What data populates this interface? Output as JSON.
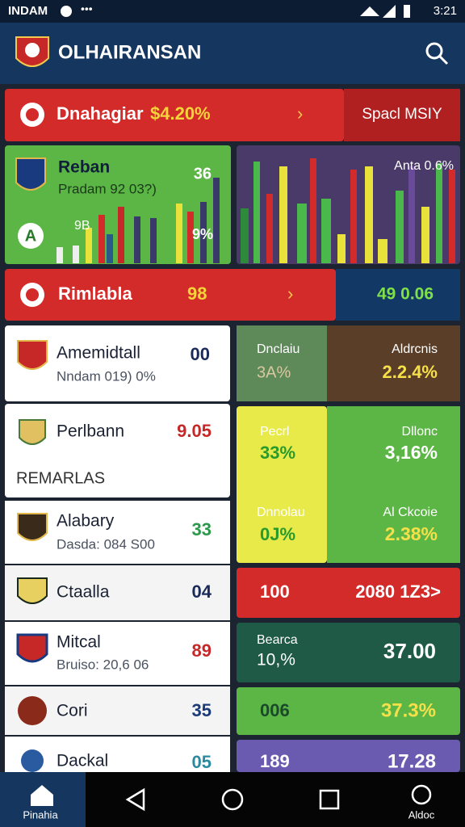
{
  "status_bar": {
    "carrier": "INDAM",
    "time": "3:21"
  },
  "header": {
    "title": "OLHAIRANSAN"
  },
  "banner_1": {
    "name": "Dnahagiar",
    "value": "$4.20%",
    "side": "Spacl MSIY"
  },
  "tile_left": {
    "name": "Reban",
    "sub": "Pradam 92 03?)",
    "top_value": "36",
    "mid_value": "9B",
    "low_value": "9%"
  },
  "tile_right": {
    "label": "Anta 0.6%"
  },
  "banner_2": {
    "name": "Rimlabla",
    "value": "98",
    "side": "49 0.06"
  },
  "list": {
    "items": [
      {
        "name": "Amemidtall",
        "sub": "Nndam 019) 0%",
        "value": "00"
      },
      {
        "name": "Perlbann",
        "value": "9.05"
      },
      {
        "name": "Alabary",
        "sub": "Dasda: 084 S00",
        "value": "33"
      },
      {
        "name": "Ctaalla",
        "value": "04"
      },
      {
        "name": "Mitcal",
        "sub": "Bruiso: 20,6 06",
        "value": "89"
      },
      {
        "name": "Cori",
        "value": "35"
      },
      {
        "name": "Dackal",
        "value": "05"
      }
    ],
    "section": "REMARLAS"
  },
  "stats": {
    "row1": {
      "left_label": "Dnclaiu",
      "left_value": "3A%",
      "right_label": "Aldrcnis",
      "right_value": "2.2.4%"
    },
    "row2": {
      "left_label": "Pecrl",
      "left_value": "33%",
      "right_label": "Dllonc",
      "right_value": "3,16%"
    },
    "row3": {
      "left_label": "Dnnolau",
      "left_value": "0J%",
      "right_label": "Al Ckcoie",
      "right_value": "2.38%"
    },
    "row4": {
      "left_value": "100",
      "right_value": "2080 1Z3>"
    },
    "row5": {
      "left_label": "Bearca",
      "left_value": "10,%",
      "right_value": "37.00"
    },
    "row6": {
      "left_value": "006",
      "right_value": "37.3%"
    },
    "row7": {
      "left_value": "189",
      "right_value": "17.28"
    }
  },
  "nav": {
    "home": "Pinahia",
    "last": "Aldoc"
  }
}
